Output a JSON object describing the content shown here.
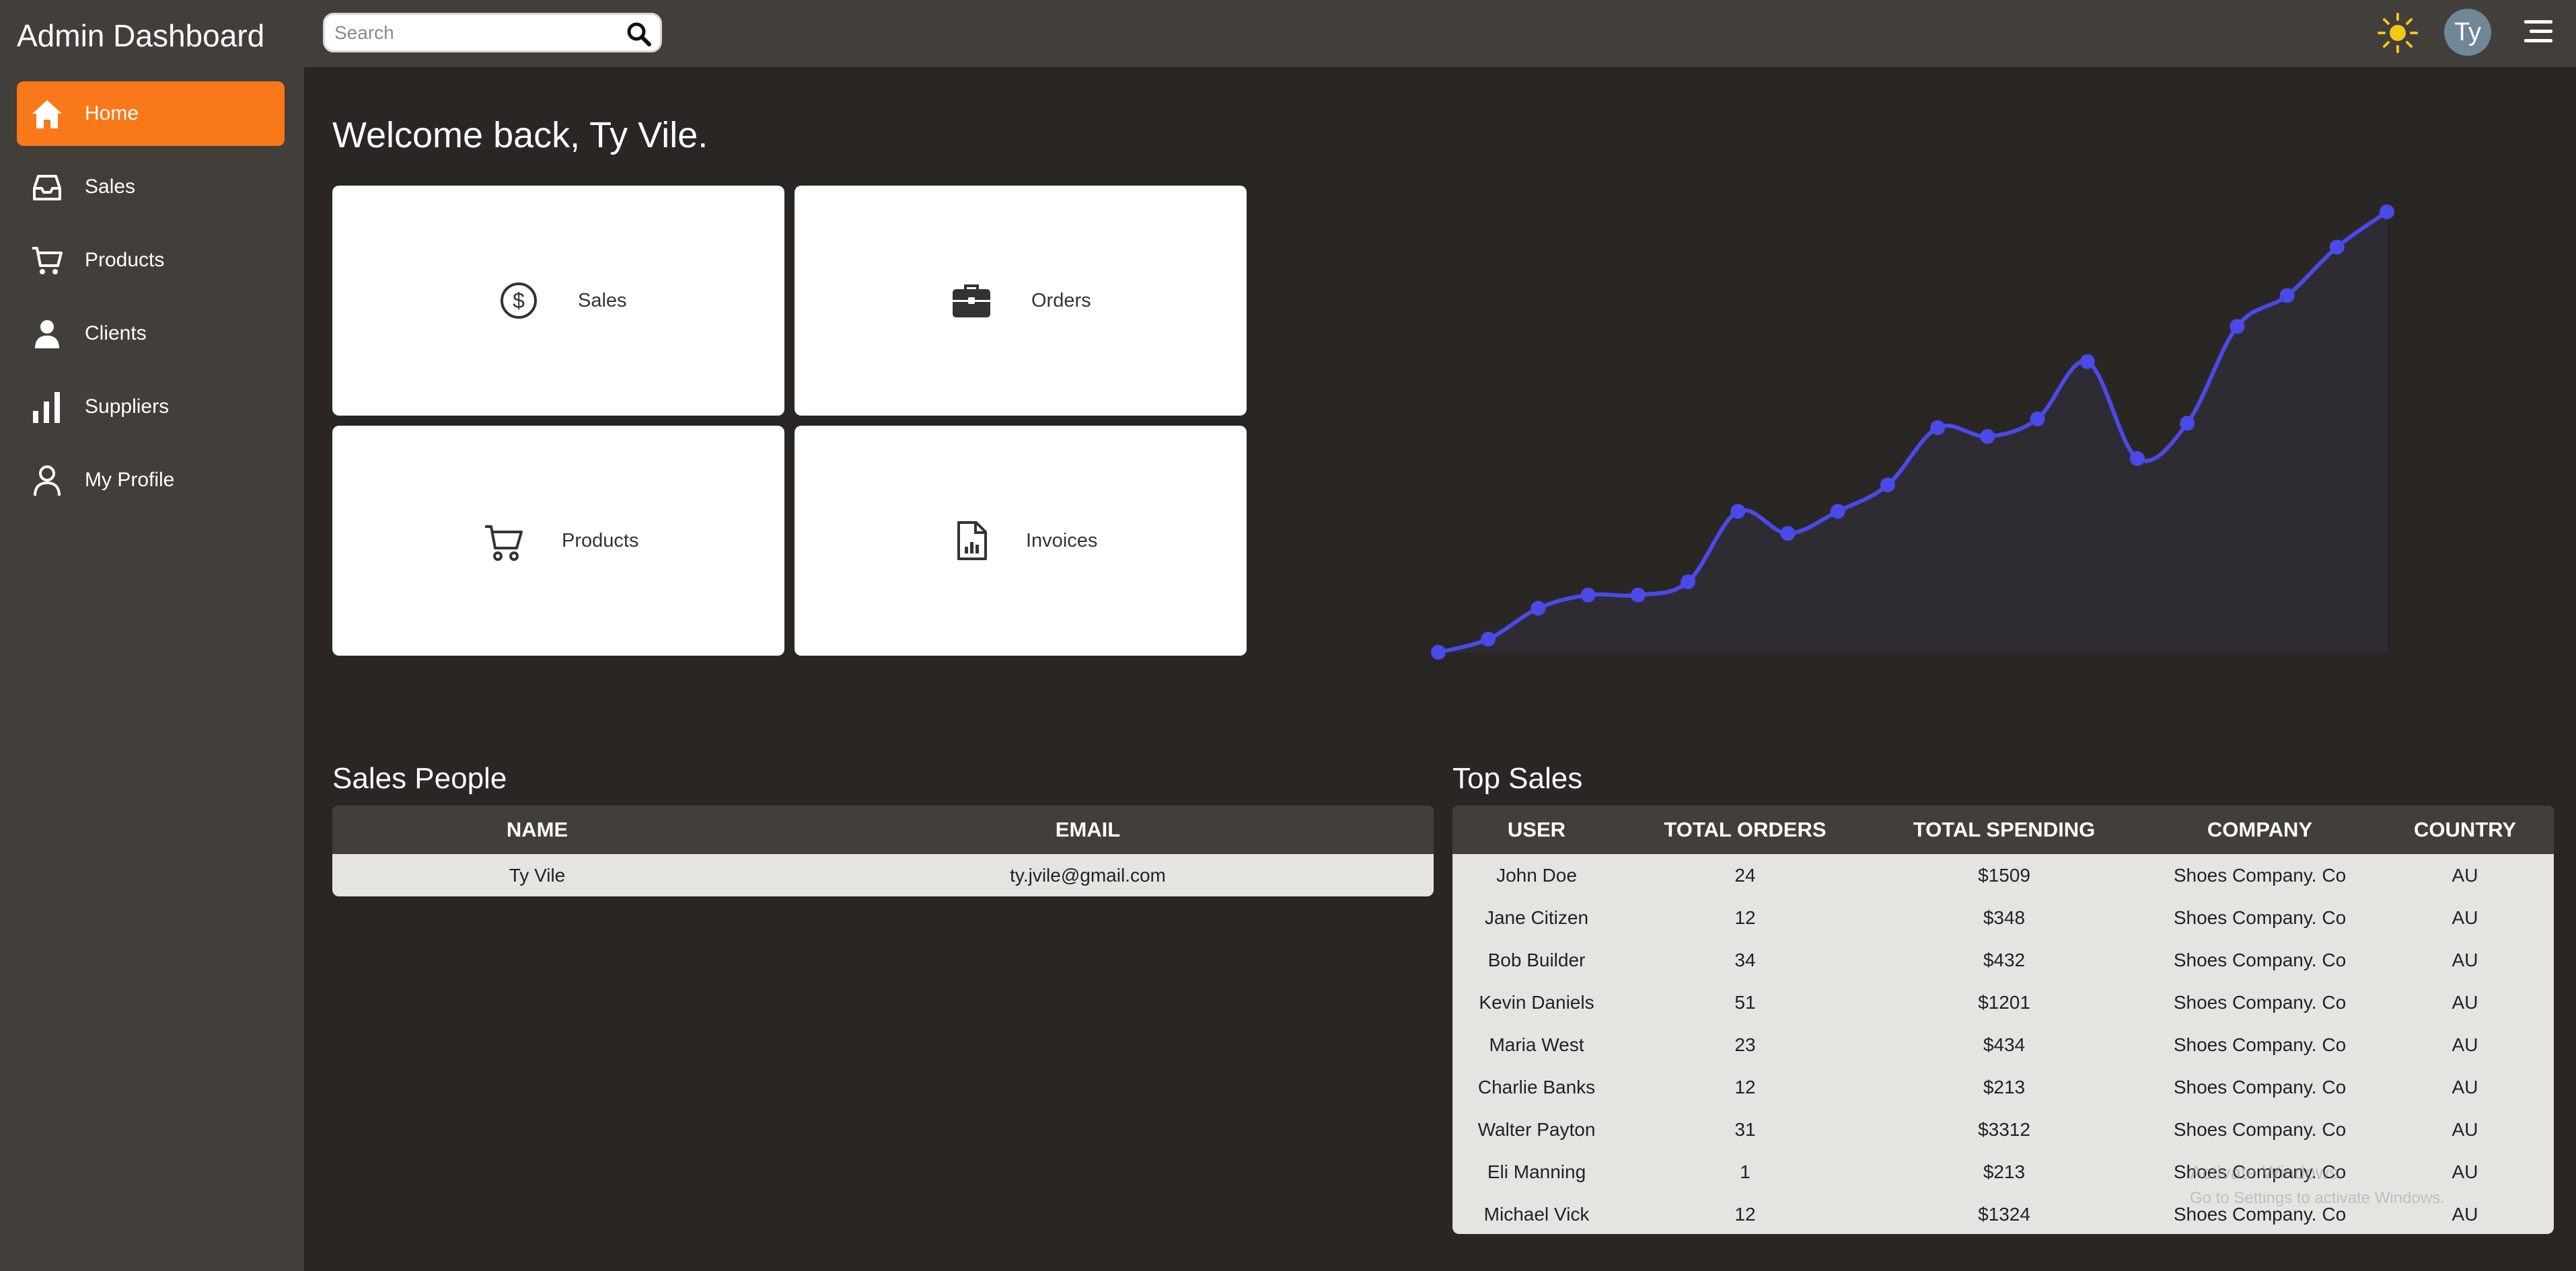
{
  "app": {
    "title": "Admin Dashboard"
  },
  "search": {
    "placeholder": "Search",
    "value": ""
  },
  "header": {
    "avatar_initials": "Ty",
    "theme_icon": "sun-icon",
    "menu_icon": "menu-icon"
  },
  "sidebar": {
    "items": [
      {
        "label": "Home",
        "icon": "home-icon",
        "active": true
      },
      {
        "label": "Sales",
        "icon": "inbox-icon"
      },
      {
        "label": "Products",
        "icon": "cart-icon"
      },
      {
        "label": "Clients",
        "icon": "person-icon"
      },
      {
        "label": "Suppliers",
        "icon": "bar-chart-icon"
      },
      {
        "label": "My Profile",
        "icon": "user-outline-icon"
      }
    ]
  },
  "main": {
    "welcome": "Welcome back, Ty Vile.",
    "tiles": [
      {
        "label": "Sales",
        "icon": "dollar-circle-icon"
      },
      {
        "label": "Orders",
        "icon": "briefcase-icon"
      },
      {
        "label": "Products",
        "icon": "cart-icon"
      },
      {
        "label": "Invoices",
        "icon": "invoice-icon"
      }
    ]
  },
  "chart_data": {
    "type": "area",
    "title": "",
    "values": [
      0,
      3,
      10,
      13,
      13,
      16,
      32,
      27,
      32,
      38,
      51,
      49,
      53,
      66,
      44,
      52,
      74,
      81,
      92,
      100
    ],
    "ylim": [
      0,
      100
    ],
    "grid": false,
    "legend": "none",
    "line_color": "#4a4ae8",
    "fill_color": "#2f2b33"
  },
  "sales_people": {
    "title": "Sales People",
    "columns": [
      "NAME",
      "EMAIL"
    ],
    "rows": [
      [
        "Ty Vile",
        "ty.jvile@gmail.com"
      ]
    ]
  },
  "top_sales": {
    "title": "Top Sales",
    "columns": [
      "USER",
      "TOTAL ORDERS",
      "TOTAL SPENDING",
      "COMPANY",
      "COUNTRY"
    ],
    "rows": [
      [
        "John Doe",
        "24",
        "$1509",
        "Shoes Company. Co",
        "AU"
      ],
      [
        "Jane Citizen",
        "12",
        "$348",
        "Shoes Company. Co",
        "AU"
      ],
      [
        "Bob Builder",
        "34",
        "$432",
        "Shoes Company. Co",
        "AU"
      ],
      [
        "Kevin Daniels",
        "51",
        "$1201",
        "Shoes Company. Co",
        "AU"
      ],
      [
        "Maria West",
        "23",
        "$434",
        "Shoes Company. Co",
        "AU"
      ],
      [
        "Charlie Banks",
        "12",
        "$213",
        "Shoes Company. Co",
        "AU"
      ],
      [
        "Walter Payton",
        "31",
        "$3312",
        "Shoes Company. Co",
        "AU"
      ],
      [
        "Eli Manning",
        "1",
        "$213",
        "Shoes Company. Co",
        "AU"
      ],
      [
        "Michael Vick",
        "12",
        "$1324",
        "Shoes Company. Co",
        "AU"
      ]
    ]
  },
  "watermark": {
    "line1": "Activate Windows",
    "line2": "Go to Settings to activate Windows."
  }
}
